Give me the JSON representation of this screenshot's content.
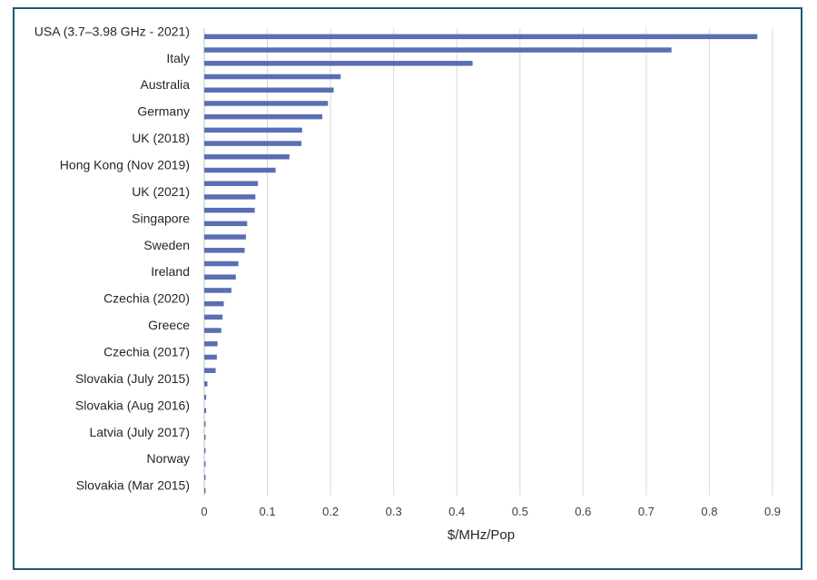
{
  "chart_data": {
    "type": "bar",
    "orientation": "horizontal",
    "title": "",
    "xlabel": "$/MHz/Pop",
    "ylabel": "",
    "xlim": [
      0,
      0.9
    ],
    "x_ticks": [
      "0",
      "0.1",
      "0.2",
      "0.3",
      "0.4",
      "0.5",
      "0.6",
      "0.7",
      "0.8",
      "0.9"
    ],
    "grid": true,
    "legend": "none",
    "bar_color": "#5a6fb3",
    "categories": [
      "USA (3.7–3.98 GHz - 2021)",
      "",
      "Italy",
      "",
      "Australia",
      "",
      "Germany",
      "",
      "UK (2018)",
      "",
      "Hong Kong (Nov 2019)",
      "",
      "UK (2021)",
      "",
      "Singapore",
      "",
      "Sweden",
      "",
      "Ireland",
      "",
      "Czechia (2020)",
      "",
      "Greece",
      "",
      "Czechia (2017)",
      "",
      "Slovakia (July 2015)",
      "",
      "Slovakia (Aug 2016)",
      "",
      "Latvia (July 2017)",
      "",
      "Norway",
      "",
      "Slovakia (Mar 2015)"
    ],
    "values": [
      0.876,
      0.74,
      0.425,
      0.216,
      0.205,
      0.196,
      0.187,
      0.155,
      0.154,
      0.135,
      0.113,
      0.085,
      0.081,
      0.08,
      0.068,
      0.066,
      0.064,
      0.054,
      0.05,
      0.043,
      0.031,
      0.029,
      0.027,
      0.021,
      0.02,
      0.018,
      0.005,
      0.003,
      0.003,
      0.002,
      0.002,
      0.001,
      0.001,
      0.001,
      0.001
    ]
  }
}
